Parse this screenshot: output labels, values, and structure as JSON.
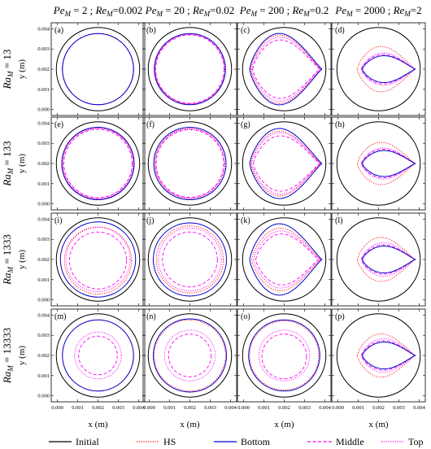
{
  "chart_data": {
    "type": "line",
    "columns": [
      {
        "pe": "2",
        "re": "0.002"
      },
      {
        "pe": "20",
        "re": "0.02"
      },
      {
        "pe": "200",
        "re": "0.2"
      },
      {
        "pe": "2000",
        "re": "2"
      }
    ],
    "rows": [
      {
        "ra": "13"
      },
      {
        "ra": "133"
      },
      {
        "ra": "1333"
      },
      {
        "ra": "13333"
      }
    ],
    "panel_labels": [
      "(a)",
      "(b)",
      "(c)",
      "(d)",
      "(e)",
      "(f)",
      "(g)",
      "(h)",
      "(i)",
      "(j)",
      "(k)",
      "(l)",
      "(m)",
      "(n)",
      "(o)",
      "(p)"
    ],
    "xlabel": "x (m)",
    "ylabel": "y (m)",
    "xticks": [
      "0.000",
      "0.001",
      "0.002",
      "0.003",
      "0.004"
    ],
    "yticks": [
      "0.000",
      "0.001",
      "0.002",
      "0.003",
      "0.004"
    ],
    "xlim": [
      -0.0003,
      0.0043
    ],
    "ylim": [
      -0.0003,
      0.0043
    ],
    "grid": false,
    "legend_position": "bottom",
    "series": [
      {
        "name": "Initial",
        "color": "#000000",
        "dash": "solid"
      },
      {
        "name": "HS",
        "color": "#ff0000",
        "dash": "dotted"
      },
      {
        "name": "Bottom",
        "color": "#0000cc",
        "dash": "solid"
      },
      {
        "name": "Middle",
        "color": "#ff00ff",
        "dash": "dashed"
      },
      {
        "name": "Top",
        "color": "#ff00ff",
        "dash": "dotted"
      }
    ],
    "initial_shape": {
      "center": [
        0.002,
        0.002
      ],
      "radius": 0.00205
    },
    "shapes": [
      [
        {
          "kind": "circle",
          "cx": 0.002,
          "cy": 0.002,
          "r": 0.00175
        },
        {
          "kind": "circle",
          "cx": 0.002,
          "cy": 0.002,
          "r": 0.00175
        },
        {
          "kind": "circle",
          "cx": 0.002,
          "cy": 0.002,
          "r": 0.00175
        },
        {
          "kind": "circle",
          "cx": 0.002,
          "cy": 0.002,
          "r": 0.00175
        }
      ],
      [
        {
          "kind": "circle",
          "cx": 0.002,
          "cy": 0.002,
          "r": 0.00175
        },
        {
          "kind": "circle",
          "cx": 0.002,
          "cy": 0.002,
          "r": 0.00172
        },
        {
          "kind": "circle",
          "cx": 0.002,
          "cy": 0.002,
          "r": 0.00168
        },
        {
          "kind": "circle",
          "cx": 0.002,
          "cy": 0.002,
          "r": 0.0017
        }
      ],
      [
        {
          "kind": "drop",
          "x0": 0.0003,
          "tip": 0.00385,
          "h": 0.00165
        },
        {
          "kind": "drop",
          "x0": 0.00035,
          "tip": 0.0038,
          "h": 0.00158
        },
        {
          "kind": "drop",
          "x0": 0.00045,
          "tip": 0.00375,
          "h": 0.00135
        },
        {
          "kind": "drop",
          "x0": 0.0004,
          "tip": 0.00378,
          "h": 0.00148
        }
      ],
      [
        {
          "kind": "drop",
          "x0": 0.0012,
          "tip": 0.0038,
          "h": 0.00062
        },
        {
          "kind": "drop",
          "x0": 0.00095,
          "tip": 0.0038,
          "h": 0.00105
        },
        {
          "kind": "drop",
          "x0": 0.00115,
          "tip": 0.0038,
          "h": 0.00068
        },
        {
          "kind": "drop",
          "x0": 0.00115,
          "tip": 0.0038,
          "h": 0.00075
        }
      ],
      [
        {
          "kind": "circle",
          "cx": 0.002,
          "cy": 0.002,
          "r": 0.00178
        },
        {
          "kind": "circle",
          "cx": 0.002,
          "cy": 0.002,
          "r": 0.00175
        },
        {
          "kind": "circle",
          "cx": 0.002,
          "cy": 0.002,
          "r": 0.00168
        },
        {
          "kind": "circle",
          "cx": 0.002,
          "cy": 0.002,
          "r": 0.00172
        }
      ],
      [
        {
          "kind": "circle",
          "cx": 0.002,
          "cy": 0.002,
          "r": 0.00178
        },
        {
          "kind": "circle",
          "cx": 0.002,
          "cy": 0.002,
          "r": 0.00172
        },
        {
          "kind": "circle",
          "cx": 0.002,
          "cy": 0.002,
          "r": 0.00166
        },
        {
          "kind": "circle",
          "cx": 0.002,
          "cy": 0.002,
          "r": 0.0017
        }
      ],
      [
        {
          "kind": "drop",
          "x0": 0.0003,
          "tip": 0.00385,
          "h": 0.00162
        },
        {
          "kind": "drop",
          "x0": 0.00035,
          "tip": 0.0038,
          "h": 0.0015
        },
        {
          "kind": "drop",
          "x0": 0.00048,
          "tip": 0.00375,
          "h": 0.00128
        },
        {
          "kind": "drop",
          "x0": 0.0004,
          "tip": 0.00378,
          "h": 0.00142
        }
      ],
      [
        {
          "kind": "drop",
          "x0": 0.0012,
          "tip": 0.0038,
          "h": 0.0006
        },
        {
          "kind": "drop",
          "x0": 0.00095,
          "tip": 0.0038,
          "h": 0.00098
        },
        {
          "kind": "drop",
          "x0": 0.00115,
          "tip": 0.0038,
          "h": 0.00066
        },
        {
          "kind": "drop",
          "x0": 0.00115,
          "tip": 0.0038,
          "h": 0.00072
        }
      ],
      [
        {
          "kind": "circle",
          "cx": 0.002,
          "cy": 0.002,
          "r": 0.00185
        },
        {
          "kind": "circle",
          "cx": 0.002,
          "cy": 0.00195,
          "r": 0.00165
        },
        {
          "kind": "circle",
          "cx": 0.002,
          "cy": 0.00195,
          "r": 0.0014
        },
        {
          "kind": "circle",
          "cx": 0.002,
          "cy": 0.002,
          "r": 0.00158
        }
      ],
      [
        {
          "kind": "circle",
          "cx": 0.002,
          "cy": 0.002,
          "r": 0.0018
        },
        {
          "kind": "circle",
          "cx": 0.002,
          "cy": 0.002,
          "r": 0.00165
        },
        {
          "kind": "circle",
          "cx": 0.002,
          "cy": 0.002,
          "r": 0.00135
        },
        {
          "kind": "circle",
          "cx": 0.002,
          "cy": 0.002,
          "r": 0.00155
        }
      ],
      [
        {
          "kind": "drop",
          "x0": 0.0003,
          "tip": 0.00385,
          "h": 0.00165
        },
        {
          "kind": "drop",
          "x0": 0.0004,
          "tip": 0.0038,
          "h": 0.00145
        },
        {
          "kind": "drop",
          "x0": 0.0006,
          "tip": 0.0037,
          "h": 0.00118
        },
        {
          "kind": "drop",
          "x0": 0.0005,
          "tip": 0.00375,
          "h": 0.00132
        }
      ],
      [
        {
          "kind": "drop",
          "x0": 0.0012,
          "tip": 0.0038,
          "h": 0.00062
        },
        {
          "kind": "drop",
          "x0": 0.00095,
          "tip": 0.0038,
          "h": 0.00102
        },
        {
          "kind": "drop",
          "x0": 0.00115,
          "tip": 0.0038,
          "h": 0.00068
        },
        {
          "kind": "drop",
          "x0": 0.00115,
          "tip": 0.0038,
          "h": 0.00078
        }
      ],
      [
        {
          "kind": "circle",
          "cx": 0.002,
          "cy": 0.002,
          "r": 0.00175
        },
        {
          "kind": "circle",
          "cx": 0.002,
          "cy": 0.002,
          "r": 0.00175
        },
        {
          "kind": "circle",
          "cx": 0.002,
          "cy": 0.002,
          "r": 0.00095
        },
        {
          "kind": "circle",
          "cx": 0.002,
          "cy": 0.002,
          "r": 0.00115
        }
      ],
      [
        {
          "kind": "circle",
          "cx": 0.002,
          "cy": 0.002,
          "r": 0.0018
        },
        {
          "kind": "circle",
          "cx": 0.002,
          "cy": 0.002,
          "r": 0.00175
        },
        {
          "kind": "circle",
          "cx": 0.002,
          "cy": 0.002,
          "r": 0.00105
        },
        {
          "kind": "circle",
          "cx": 0.002,
          "cy": 0.002,
          "r": 0.00125
        }
      ],
      [
        {
          "kind": "circle",
          "cx": 0.002,
          "cy": 0.002,
          "r": 0.00175
        },
        {
          "kind": "circle",
          "cx": 0.002,
          "cy": 0.002,
          "r": 0.0017
        },
        {
          "kind": "circle",
          "cx": 0.002,
          "cy": 0.00195,
          "r": 0.0011
        },
        {
          "kind": "circle",
          "cx": 0.002,
          "cy": 0.002,
          "r": 0.00125
        }
      ],
      [
        {
          "kind": "drop",
          "x0": 0.0012,
          "tip": 0.0038,
          "h": 0.00062
        },
        {
          "kind": "drop",
          "x0": 0.00095,
          "tip": 0.0038,
          "h": 0.001
        },
        {
          "kind": "drop",
          "x0": 0.00115,
          "tip": 0.0038,
          "h": 0.00068
        },
        {
          "kind": "drop",
          "x0": 0.00115,
          "tip": 0.0038,
          "h": 0.00078
        }
      ]
    ]
  }
}
